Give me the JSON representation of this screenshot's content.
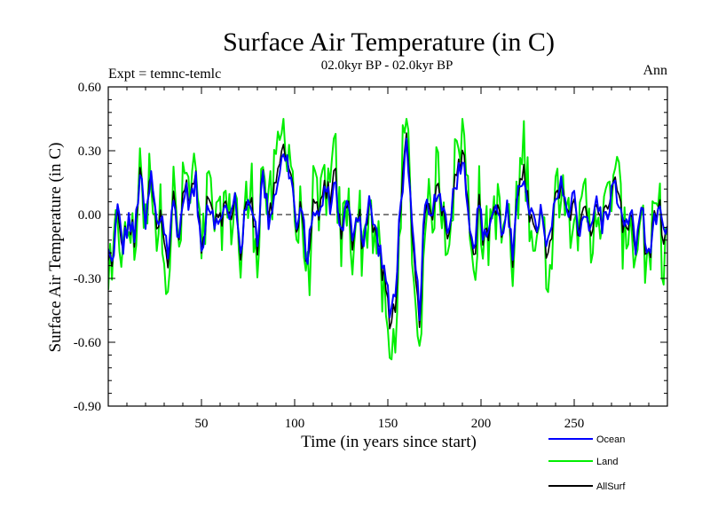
{
  "chart_data": {
    "type": "line",
    "title": "Surface Air Temperature (in C)",
    "subtitle": "02.0kyr BP - 02.0kyr BP",
    "left_label": "Expt = temnc-temlc",
    "right_label": "Ann",
    "xlabel": "Time (in years since start)",
    "ylabel": "Surface Air Temperature (in C)",
    "xlim": [
      0,
      300
    ],
    "ylim": [
      -0.9,
      0.6
    ],
    "x_ticks": [
      50,
      100,
      150,
      200,
      250
    ],
    "x_tick_labels": [
      "50",
      "100",
      "150",
      "200",
      "250"
    ],
    "y_ticks": [
      0.6,
      0.3,
      0.0,
      -0.3,
      -0.6,
      -0.9
    ],
    "y_tick_labels": [
      "0.60",
      "0.30",
      "0.00",
      "-0.30",
      "-0.60",
      "-0.90"
    ],
    "reference_line": 0.0,
    "legend_position": "bottom-right",
    "series": [
      {
        "name": "Ocean",
        "color": "#0000ff"
      },
      {
        "name": "Land",
        "color": "#00ee00"
      },
      {
        "name": "AllSurf",
        "color": "#000000"
      }
    ],
    "anchors": [
      [
        0,
        -0.18
      ],
      [
        2,
        -0.24
      ],
      [
        5,
        0.02
      ],
      [
        8,
        -0.15
      ],
      [
        11,
        -0.02
      ],
      [
        14,
        -0.12
      ],
      [
        17,
        0.2
      ],
      [
        20,
        -0.06
      ],
      [
        23,
        0.18
      ],
      [
        26,
        -0.05
      ],
      [
        29,
        0.0
      ],
      [
        32,
        -0.18
      ],
      [
        35,
        0.06
      ],
      [
        38,
        -0.1
      ],
      [
        41,
        0.12
      ],
      [
        44,
        0.06
      ],
      [
        47,
        0.14
      ],
      [
        50,
        -0.18
      ],
      [
        53,
        0.05
      ],
      [
        56,
        0.03
      ],
      [
        59,
        -0.08
      ],
      [
        62,
        0.06
      ],
      [
        65,
        -0.04
      ],
      [
        68,
        0.08
      ],
      [
        71,
        -0.15
      ],
      [
        74,
        0.02
      ],
      [
        77,
        0.06
      ],
      [
        80,
        -0.1
      ],
      [
        83,
        0.18
      ],
      [
        86,
        -0.02
      ],
      [
        89,
        0.08
      ],
      [
        92,
        0.22
      ],
      [
        95,
        0.28
      ],
      [
        98,
        0.18
      ],
      [
        101,
        -0.06
      ],
      [
        104,
        0.0
      ],
      [
        107,
        -0.22
      ],
      [
        110,
        0.05
      ],
      [
        113,
        -0.04
      ],
      [
        116,
        0.12
      ],
      [
        119,
        0.06
      ],
      [
        122,
        0.15
      ],
      [
        125,
        -0.1
      ],
      [
        128,
        0.04
      ],
      [
        131,
        -0.08
      ],
      [
        134,
        0.02
      ],
      [
        137,
        -0.12
      ],
      [
        140,
        0.05
      ],
      [
        143,
        -0.06
      ],
      [
        146,
        -0.18
      ],
      [
        149,
        -0.3
      ],
      [
        151,
        -0.48
      ],
      [
        154,
        -0.36
      ],
      [
        157,
        0.08
      ],
      [
        160,
        0.3
      ],
      [
        162,
        0.05
      ],
      [
        165,
        -0.28
      ],
      [
        167,
        -0.44
      ],
      [
        170,
        0.05
      ],
      [
        173,
        -0.04
      ],
      [
        176,
        0.12
      ],
      [
        179,
        0.06
      ],
      [
        182,
        -0.06
      ],
      [
        185,
        0.08
      ],
      [
        188,
        0.22
      ],
      [
        190,
        0.28
      ],
      [
        193,
        0.05
      ],
      [
        196,
        -0.15
      ],
      [
        199,
        0.04
      ],
      [
        202,
        -0.12
      ],
      [
        205,
        -0.02
      ],
      [
        208,
        0.04
      ],
      [
        211,
        -0.08
      ],
      [
        214,
        0.03
      ],
      [
        217,
        -0.2
      ],
      [
        220,
        0.08
      ],
      [
        223,
        0.2
      ],
      [
        226,
        0.04
      ],
      [
        229,
        -0.08
      ],
      [
        232,
        0.02
      ],
      [
        235,
        -0.18
      ],
      [
        238,
        -0.05
      ],
      [
        241,
        0.08
      ],
      [
        244,
        0.15
      ],
      [
        247,
        -0.02
      ],
      [
        250,
        0.1
      ],
      [
        253,
        -0.08
      ],
      [
        256,
        0.04
      ],
      [
        259,
        -0.1
      ],
      [
        262,
        0.08
      ],
      [
        265,
        -0.05
      ],
      [
        268,
        0.02
      ],
      [
        271,
        0.14
      ],
      [
        274,
        0.06
      ],
      [
        277,
        -0.1
      ],
      [
        280,
        0.04
      ],
      [
        283,
        -0.16
      ],
      [
        286,
        0.06
      ],
      [
        289,
        -0.2
      ],
      [
        292,
        -0.08
      ],
      [
        295,
        0.03
      ],
      [
        298,
        -0.12
      ],
      [
        300,
        -0.1
      ]
    ]
  }
}
